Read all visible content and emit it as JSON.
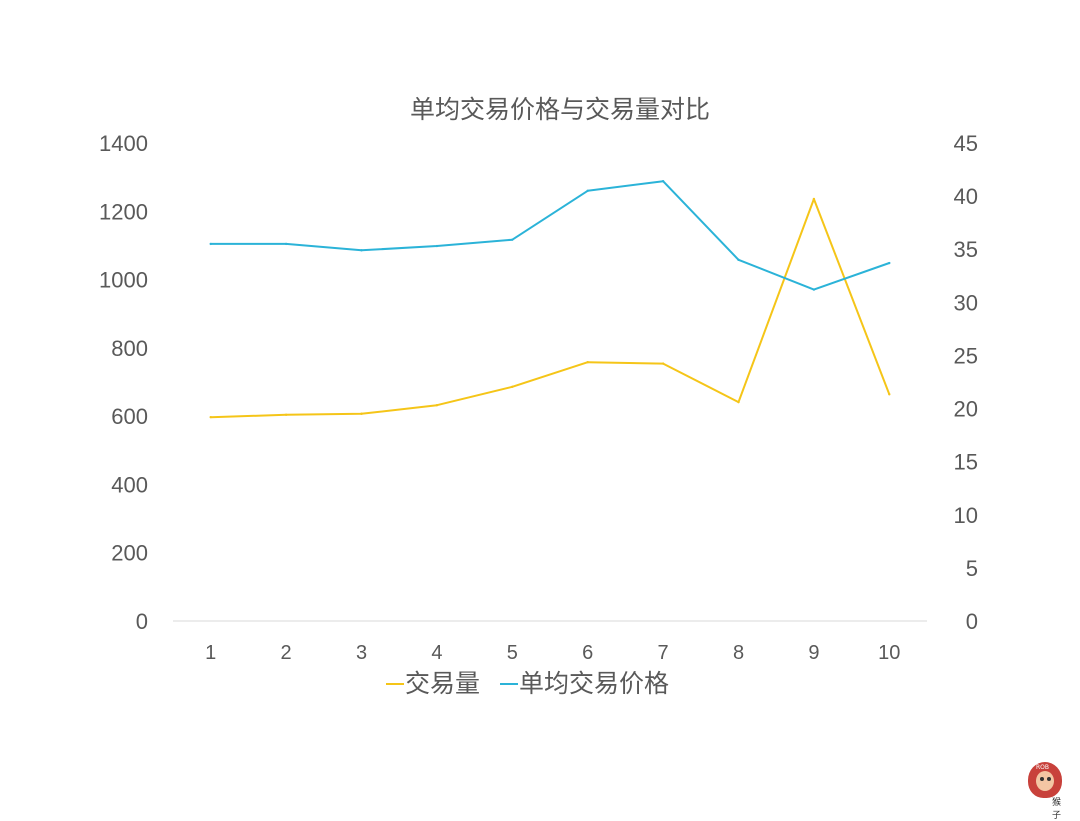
{
  "chart_data": {
    "type": "line",
    "title": "单均交易价格与交易量对比",
    "categories": [
      "1",
      "2",
      "3",
      "4",
      "5",
      "6",
      "7",
      "8",
      "9",
      "10"
    ],
    "y_left": {
      "ylim": [
        0,
        1400
      ],
      "ticks": [
        0,
        200,
        400,
        600,
        800,
        1000,
        1200,
        1400
      ]
    },
    "y_right": {
      "ylim": [
        0,
        45
      ],
      "ticks": [
        0,
        5,
        10,
        15,
        20,
        25,
        30,
        35,
        40,
        45
      ]
    },
    "series": [
      {
        "name": "交易量",
        "axis": "left",
        "color": "#F5C518",
        "values": [
          597,
          604,
          607,
          632,
          686,
          758,
          754,
          641,
          1236,
          664
        ]
      },
      {
        "name": "单均交易价格",
        "axis": "right",
        "color": "#2BB3D8",
        "values": [
          35.5,
          35.5,
          34.9,
          35.3,
          35.9,
          40.5,
          41.4,
          34.0,
          31.2,
          33.7
        ]
      }
    ],
    "grid": false,
    "legend_position": "bottom"
  },
  "logo": {
    "tag": "ROB",
    "name": "猴子"
  }
}
